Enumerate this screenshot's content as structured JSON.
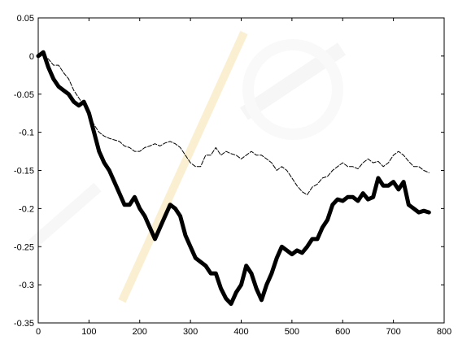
{
  "chart_data": {
    "type": "line",
    "title": "",
    "xlabel": "",
    "ylabel": "",
    "xlim": [
      0,
      800
    ],
    "ylim": [
      -0.35,
      0.05
    ],
    "xticks": [
      "0",
      "100",
      "200",
      "300",
      "400",
      "500",
      "600",
      "700",
      "800"
    ],
    "yticks": [
      "0.05",
      "0",
      "-0.05",
      "-0.1",
      "-0.15",
      "-0.2",
      "-0.25",
      "-0.3",
      "-0.35"
    ],
    "grid": false,
    "legend": "none",
    "series": [
      {
        "style": "thin dashed",
        "color": "#000000",
        "points": [
          [
            0,
            0.0
          ],
          [
            10,
            0.002
          ],
          [
            20,
            -0.004
          ],
          [
            30,
            -0.012
          ],
          [
            40,
            -0.012
          ],
          [
            50,
            -0.022
          ],
          [
            60,
            -0.03
          ],
          [
            70,
            -0.045
          ],
          [
            80,
            -0.055
          ],
          [
            90,
            -0.065
          ],
          [
            100,
            -0.075
          ],
          [
            110,
            -0.09
          ],
          [
            120,
            -0.1
          ],
          [
            130,
            -0.105
          ],
          [
            140,
            -0.108
          ],
          [
            150,
            -0.11
          ],
          [
            160,
            -0.112
          ],
          [
            170,
            -0.118
          ],
          [
            180,
            -0.12
          ],
          [
            190,
            -0.125
          ],
          [
            200,
            -0.125
          ],
          [
            210,
            -0.12
          ],
          [
            220,
            -0.118
          ],
          [
            230,
            -0.115
          ],
          [
            240,
            -0.118
          ],
          [
            250,
            -0.114
          ],
          [
            260,
            -0.112
          ],
          [
            270,
            -0.115
          ],
          [
            280,
            -0.12
          ],
          [
            290,
            -0.13
          ],
          [
            300,
            -0.14
          ],
          [
            310,
            -0.145
          ],
          [
            320,
            -0.145
          ],
          [
            330,
            -0.13
          ],
          [
            340,
            -0.13
          ],
          [
            350,
            -0.12
          ],
          [
            360,
            -0.13
          ],
          [
            370,
            -0.125
          ],
          [
            380,
            -0.128
          ],
          [
            390,
            -0.13
          ],
          [
            400,
            -0.135
          ],
          [
            410,
            -0.13
          ],
          [
            420,
            -0.125
          ],
          [
            430,
            -0.13
          ],
          [
            440,
            -0.13
          ],
          [
            450,
            -0.135
          ],
          [
            460,
            -0.14
          ],
          [
            470,
            -0.15
          ],
          [
            480,
            -0.145
          ],
          [
            490,
            -0.15
          ],
          [
            500,
            -0.16
          ],
          [
            510,
            -0.17
          ],
          [
            520,
            -0.178
          ],
          [
            530,
            -0.182
          ],
          [
            540,
            -0.172
          ],
          [
            550,
            -0.168
          ],
          [
            560,
            -0.16
          ],
          [
            570,
            -0.158
          ],
          [
            580,
            -0.15
          ],
          [
            590,
            -0.145
          ],
          [
            600,
            -0.14
          ],
          [
            610,
            -0.145
          ],
          [
            620,
            -0.145
          ],
          [
            630,
            -0.148
          ],
          [
            640,
            -0.14
          ],
          [
            650,
            -0.135
          ],
          [
            660,
            -0.14
          ],
          [
            670,
            -0.138
          ],
          [
            680,
            -0.145
          ],
          [
            690,
            -0.14
          ],
          [
            700,
            -0.13
          ],
          [
            710,
            -0.125
          ],
          [
            720,
            -0.13
          ],
          [
            730,
            -0.138
          ],
          [
            740,
            -0.145
          ],
          [
            750,
            -0.145
          ],
          [
            760,
            -0.15
          ],
          [
            770,
            -0.153
          ]
        ]
      },
      {
        "style": "thick solid",
        "color": "#000000",
        "points": [
          [
            0,
            0.0
          ],
          [
            10,
            0.005
          ],
          [
            20,
            -0.015
          ],
          [
            30,
            -0.03
          ],
          [
            40,
            -0.04
          ],
          [
            50,
            -0.045
          ],
          [
            60,
            -0.05
          ],
          [
            70,
            -0.06
          ],
          [
            80,
            -0.065
          ],
          [
            90,
            -0.06
          ],
          [
            100,
            -0.075
          ],
          [
            110,
            -0.1
          ],
          [
            120,
            -0.125
          ],
          [
            130,
            -0.14
          ],
          [
            140,
            -0.15
          ],
          [
            150,
            -0.165
          ],
          [
            160,
            -0.18
          ],
          [
            170,
            -0.195
          ],
          [
            180,
            -0.195
          ],
          [
            190,
            -0.185
          ],
          [
            200,
            -0.2
          ],
          [
            210,
            -0.21
          ],
          [
            220,
            -0.225
          ],
          [
            230,
            -0.24
          ],
          [
            240,
            -0.225
          ],
          [
            250,
            -0.21
          ],
          [
            260,
            -0.195
          ],
          [
            270,
            -0.2
          ],
          [
            280,
            -0.21
          ],
          [
            290,
            -0.235
          ],
          [
            300,
            -0.25
          ],
          [
            310,
            -0.265
          ],
          [
            320,
            -0.27
          ],
          [
            330,
            -0.275
          ],
          [
            340,
            -0.285
          ],
          [
            350,
            -0.285
          ],
          [
            360,
            -0.305
          ],
          [
            370,
            -0.318
          ],
          [
            380,
            -0.325
          ],
          [
            390,
            -0.31
          ],
          [
            400,
            -0.3
          ],
          [
            410,
            -0.275
          ],
          [
            420,
            -0.285
          ],
          [
            430,
            -0.305
          ],
          [
            440,
            -0.32
          ],
          [
            450,
            -0.3
          ],
          [
            460,
            -0.285
          ],
          [
            470,
            -0.265
          ],
          [
            480,
            -0.25
          ],
          [
            490,
            -0.255
          ],
          [
            500,
            -0.26
          ],
          [
            510,
            -0.255
          ],
          [
            520,
            -0.258
          ],
          [
            530,
            -0.25
          ],
          [
            540,
            -0.24
          ],
          [
            550,
            -0.24
          ],
          [
            560,
            -0.225
          ],
          [
            570,
            -0.215
          ],
          [
            580,
            -0.195
          ],
          [
            590,
            -0.188
          ],
          [
            600,
            -0.19
          ],
          [
            610,
            -0.185
          ],
          [
            620,
            -0.185
          ],
          [
            630,
            -0.19
          ],
          [
            640,
            -0.18
          ],
          [
            650,
            -0.188
          ],
          [
            660,
            -0.185
          ],
          [
            670,
            -0.16
          ],
          [
            680,
            -0.17
          ],
          [
            690,
            -0.17
          ],
          [
            700,
            -0.165
          ],
          [
            710,
            -0.175
          ],
          [
            720,
            -0.165
          ],
          [
            730,
            -0.195
          ],
          [
            740,
            -0.2
          ],
          [
            750,
            -0.205
          ],
          [
            760,
            -0.203
          ],
          [
            770,
            -0.205
          ]
        ]
      }
    ]
  }
}
